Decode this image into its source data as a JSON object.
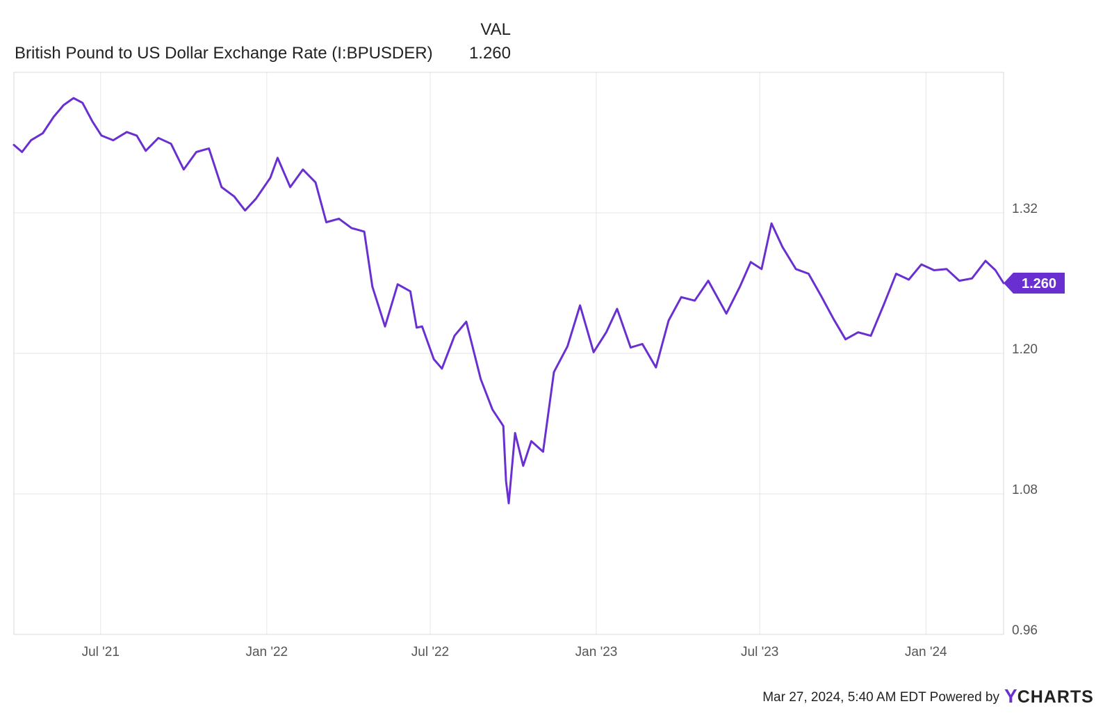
{
  "legend": {
    "column_header": "VAL",
    "series_name": "British Pound to US Dollar Exchange Rate (I:BPUSDER)",
    "series_value": "1.260"
  },
  "footer": {
    "timestamp": "Mar 27, 2024, 5:40 AM EDT",
    "powered_by": "Powered by",
    "logo_y": "Y",
    "logo_rest": "CHARTS"
  },
  "colors": {
    "series": "#6a2fd0",
    "logo_y": "#6a2fd0"
  },
  "chart_data": {
    "type": "line",
    "title": "",
    "xlabel": "",
    "ylabel": "",
    "ylim": [
      0.96,
      1.44
    ],
    "y_ticks": [
      0.96,
      1.08,
      1.2,
      1.32
    ],
    "y_tick_labels": [
      "0.96",
      "1.08",
      "1.20",
      "1.32"
    ],
    "x_range": [
      "2021-03-27",
      "2024-03-27"
    ],
    "x_ticks": [
      "2021-07-01",
      "2022-01-01",
      "2022-07-01",
      "2023-01-01",
      "2023-07-01",
      "2024-01-01"
    ],
    "x_tick_labels": [
      "Jul '21",
      "Jan '22",
      "Jul '22",
      "Jan '23",
      "Jul '23",
      "Jan '24"
    ],
    "grid": true,
    "y_axis_side": "right",
    "last_value_label": "1.260",
    "series": [
      {
        "name": "British Pound to US Dollar Exchange Rate (I:BPUSDER)",
        "points": [
          [
            "2021-03-27",
            1.378
          ],
          [
            "2021-04-05",
            1.372
          ],
          [
            "2021-04-15",
            1.382
          ],
          [
            "2021-04-28",
            1.388
          ],
          [
            "2021-05-10",
            1.402
          ],
          [
            "2021-05-21",
            1.412
          ],
          [
            "2021-06-01",
            1.418
          ],
          [
            "2021-06-11",
            1.414
          ],
          [
            "2021-06-22",
            1.398
          ],
          [
            "2021-07-02",
            1.386
          ],
          [
            "2021-07-15",
            1.382
          ],
          [
            "2021-07-30",
            1.389
          ],
          [
            "2021-08-10",
            1.386
          ],
          [
            "2021-08-20",
            1.373
          ],
          [
            "2021-09-03",
            1.384
          ],
          [
            "2021-09-17",
            1.379
          ],
          [
            "2021-10-01",
            1.357
          ],
          [
            "2021-10-15",
            1.372
          ],
          [
            "2021-10-29",
            1.375
          ],
          [
            "2021-11-12",
            1.342
          ],
          [
            "2021-11-26",
            1.334
          ],
          [
            "2021-12-08",
            1.322
          ],
          [
            "2021-12-20",
            1.332
          ],
          [
            "2022-01-05",
            1.35
          ],
          [
            "2022-01-13",
            1.367
          ],
          [
            "2022-01-27",
            1.342
          ],
          [
            "2022-02-10",
            1.357
          ],
          [
            "2022-02-24",
            1.346
          ],
          [
            "2022-03-08",
            1.312
          ],
          [
            "2022-03-22",
            1.315
          ],
          [
            "2022-04-05",
            1.307
          ],
          [
            "2022-04-19",
            1.304
          ],
          [
            "2022-04-28",
            1.257
          ],
          [
            "2022-05-12",
            1.223
          ],
          [
            "2022-05-26",
            1.259
          ],
          [
            "2022-06-09",
            1.253
          ],
          [
            "2022-06-16",
            1.222
          ],
          [
            "2022-06-22",
            1.223
          ],
          [
            "2022-07-05",
            1.195
          ],
          [
            "2022-07-14",
            1.187
          ],
          [
            "2022-07-28",
            1.215
          ],
          [
            "2022-08-10",
            1.227
          ],
          [
            "2022-08-26",
            1.178
          ],
          [
            "2022-09-08",
            1.152
          ],
          [
            "2022-09-20",
            1.138
          ],
          [
            "2022-09-23",
            1.091
          ],
          [
            "2022-09-26",
            1.072
          ],
          [
            "2022-10-03",
            1.132
          ],
          [
            "2022-10-12",
            1.104
          ],
          [
            "2022-10-21",
            1.125
          ],
          [
            "2022-11-03",
            1.116
          ],
          [
            "2022-11-15",
            1.184
          ],
          [
            "2022-11-30",
            1.206
          ],
          [
            "2022-12-14",
            1.241
          ],
          [
            "2022-12-29",
            1.201
          ],
          [
            "2023-01-12",
            1.218
          ],
          [
            "2023-01-24",
            1.238
          ],
          [
            "2023-02-08",
            1.205
          ],
          [
            "2023-02-21",
            1.208
          ],
          [
            "2023-03-08",
            1.188
          ],
          [
            "2023-03-22",
            1.228
          ],
          [
            "2023-04-05",
            1.248
          ],
          [
            "2023-04-20",
            1.245
          ],
          [
            "2023-05-05",
            1.262
          ],
          [
            "2023-05-25",
            1.234
          ],
          [
            "2023-06-09",
            1.257
          ],
          [
            "2023-06-21",
            1.278
          ],
          [
            "2023-07-03",
            1.272
          ],
          [
            "2023-07-14",
            1.311
          ],
          [
            "2023-07-26",
            1.291
          ],
          [
            "2023-08-10",
            1.272
          ],
          [
            "2023-08-24",
            1.268
          ],
          [
            "2023-09-07",
            1.249
          ],
          [
            "2023-09-21",
            1.229
          ],
          [
            "2023-10-04",
            1.212
          ],
          [
            "2023-10-18",
            1.218
          ],
          [
            "2023-11-01",
            1.215
          ],
          [
            "2023-11-15",
            1.241
          ],
          [
            "2023-11-29",
            1.268
          ],
          [
            "2023-12-13",
            1.263
          ],
          [
            "2023-12-27",
            1.276
          ],
          [
            "2024-01-10",
            1.271
          ],
          [
            "2024-01-24",
            1.272
          ],
          [
            "2024-02-07",
            1.262
          ],
          [
            "2024-02-21",
            1.264
          ],
          [
            "2024-03-07",
            1.279
          ],
          [
            "2024-03-18",
            1.271
          ],
          [
            "2024-03-27",
            1.26
          ]
        ]
      }
    ]
  }
}
